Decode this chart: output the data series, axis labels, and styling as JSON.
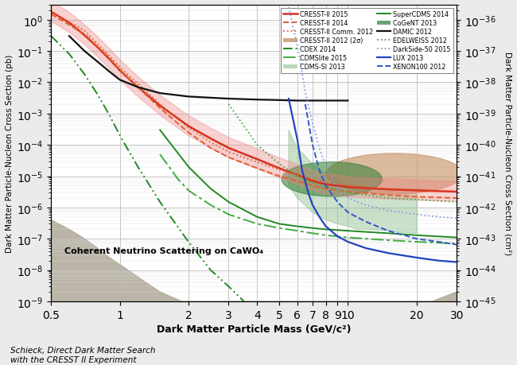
{
  "xlim": [
    0.5,
    30
  ],
  "ylim": [
    1e-09,
    3.0
  ],
  "xlabel": "Dark Matter Particle Mass (GeV/c²)",
  "ylabel_left": "Dark Matter Particle-Nucleon Cross Section (pb)",
  "ylabel_right": "Dark Matter Particle-Nucleon Cross Section (cm²)",
  "annotation": "Coherent Neutrino Scattering on CaWO₄",
  "caption_line1": "Schieck, Direct Dark Matter Search",
  "caption_line2": "with the CRESST II Experiment",
  "fig_bg": "#ebebeb",
  "plot_bg": "#ffffff"
}
